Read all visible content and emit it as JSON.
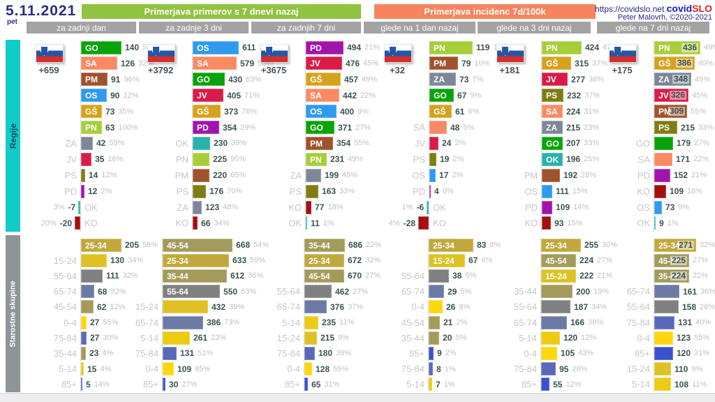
{
  "header": {
    "date": "5.11.2021",
    "weekday": "pet",
    "left_title": "Primerjava primerov s 7 dnevi nazaj",
    "right_title": "Primerjava incidenc 7d/100k",
    "url": "https://covidslo.net",
    "logo_covid": "covid",
    "logo_slo": "SLO",
    "credit": "Peter Malovrh, ©2020-2021",
    "left_tabs": [
      "za zadnji dan",
      "za zadnje 3 dni",
      "za zadnjih 7 dni"
    ],
    "right_tabs": [
      "glede na 1 dan nazaj",
      "glede na 3 dni nazaj",
      "glede na 7 dni nazaj"
    ]
  },
  "sidebar": {
    "regions_label": "Regije",
    "ages_label": "Starostne skupine"
  },
  "colors": {
    "header_green": "#90c33f",
    "header_orange": "#f6845e",
    "tab_gray": "#a3a3a3",
    "regions_sidebar": "#12cbc9",
    "ages_sidebar": "#8f9499",
    "value_text": "#3b5151",
    "percent_text": "#c0c0c0"
  },
  "chart_data": {
    "type": "bar",
    "note": "horizontal bar panels; rows = [label, value, percent, mode] where mode: in=label inside bar, out=label left of axis, chip=value shown inside bar, neg=negative bar to the left",
    "color_map": {
      "GO": "#0aa30a",
      "SA": "#fa8a64",
      "PM": "#a0522d",
      "OS": "#2e9af0",
      "GŠ": "#d6a21d",
      "PN": "#a6ce39",
      "ZA": "#7d8799",
      "JV": "#da1b48",
      "PS": "#7f7d12",
      "PD": "#a213ad",
      "OK": "#27b3ab",
      "KO": "#a50f0f",
      "25-34": "#c2a83c",
      "15-24": "#dfc125",
      "35-44": "#a49a5b",
      "45-54": "#a49a5b",
      "55-64": "#808080",
      "65-74": "#6b7aa5",
      "75-84": "#5a68ba",
      "85+": "#3a52cd",
      "0-4": "#ffd60f",
      "5-14": "#eccb12"
    },
    "sections": [
      {
        "id": "regions",
        "label": "Regije",
        "panels": [
          {
            "tab": "za zadnji dan",
            "delta": "+659",
            "rows": [
              [
                "GO",
                140,
                "55%",
                "in"
              ],
              [
                "SA",
                126,
                "32%",
                "in"
              ],
              [
                "PM",
                91,
                "96%",
                "in"
              ],
              [
                "OS",
                90,
                "12%",
                "in"
              ],
              [
                "GŠ",
                73,
                "35%",
                "in"
              ],
              [
                "PN",
                63,
                "100%",
                "in"
              ],
              [
                "ZA",
                42,
                "59%",
                "out"
              ],
              [
                "JV",
                35,
                "16%",
                "out"
              ],
              [
                "PS",
                14,
                "12%",
                "out"
              ],
              [
                "PD",
                12,
                "2%",
                "out"
              ],
              [
                "OK",
                -7,
                "3%",
                "neg"
              ],
              [
                "KO",
                -20,
                "20%",
                "neg"
              ]
            ]
          },
          {
            "tab": "za zadnje 3 dni",
            "delta": "+3792",
            "rows": [
              [
                "OS",
                611,
                "28%",
                "in"
              ],
              [
                "SA",
                579,
                "55%",
                "in"
              ],
              [
                "GO",
                430,
                "63%",
                "in"
              ],
              [
                "JV",
                405,
                "71%",
                "in"
              ],
              [
                "GŠ",
                373,
                "76%",
                "in"
              ],
              [
                "PD",
                354,
                "29%",
                "in"
              ],
              [
                "OK",
                230,
                "39%",
                "out"
              ],
              [
                "PN",
                225,
                "95%",
                "out"
              ],
              [
                "PM",
                220,
                "65%",
                "out"
              ],
              [
                "PS",
                176,
                "70%",
                "out"
              ],
              [
                "ZA",
                123,
                "48%",
                "out"
              ],
              [
                "KO",
                66,
                "34%",
                "out"
              ]
            ]
          },
          {
            "tab": "za zadnjih 7 dni",
            "delta": "+3675",
            "rows": [
              [
                "PD",
                494,
                "21%",
                "in"
              ],
              [
                "JV",
                476,
                "45%",
                "in"
              ],
              [
                "GŠ",
                457,
                "49%",
                "in"
              ],
              [
                "SA",
                442,
                "22%",
                "in"
              ],
              [
                "OS",
                400,
                "9%",
                "in"
              ],
              [
                "GO",
                371,
                "27%",
                "in"
              ],
              [
                "PM",
                354,
                "55%",
                "in"
              ],
              [
                "PN",
                231,
                "49%",
                "in"
              ],
              [
                "ZA",
                199,
                "45%",
                "out"
              ],
              [
                "PS",
                163,
                "33%",
                "out"
              ],
              [
                "KO",
                77,
                "18%",
                "out"
              ],
              [
                "OK",
                11,
                "1%",
                "out"
              ]
            ]
          },
          {
            "tab": "glede na 1 dan nazaj",
            "delta": "+32",
            "rows": [
              [
                "PN",
                119,
                "10%",
                "in"
              ],
              [
                "PM",
                79,
                "10%",
                "in"
              ],
              [
                "ZA",
                73,
                "7%",
                "in"
              ],
              [
                "GO",
                67,
                "9%",
                "in"
              ],
              [
                "GŠ",
                61,
                "6%",
                "in"
              ],
              [
                "SA",
                48,
                "5%",
                "out"
              ],
              [
                "JV",
                24,
                "2%",
                "out"
              ],
              [
                "PS",
                19,
                "2%",
                "out"
              ],
              [
                "OS",
                17,
                "2%",
                "out"
              ],
              [
                "PD",
                4,
                "0%",
                "out"
              ],
              [
                "OK",
                -6,
                "1%",
                "neg"
              ],
              [
                "KO",
                -28,
                "4%",
                "neg"
              ]
            ]
          },
          {
            "tab": "glede na 3 dni nazaj",
            "delta": "+181",
            "rows": [
              [
                "PN",
                424,
                "47%",
                "in"
              ],
              [
                "GŠ",
                315,
                "37%",
                "in"
              ],
              [
                "JV",
                277,
                "36%",
                "in"
              ],
              [
                "PS",
                232,
                "37%",
                "in"
              ],
              [
                "SA",
                224,
                "31%",
                "in"
              ],
              [
                "ZA",
                215,
                "23%",
                "in"
              ],
              [
                "GO",
                207,
                "33%",
                "in"
              ],
              [
                "OK",
                196,
                "25%",
                "in"
              ],
              [
                "PM",
                192,
                "28%",
                "out"
              ],
              [
                "OS",
                111,
                "15%",
                "out"
              ],
              [
                "PD",
                109,
                "14%",
                "out"
              ],
              [
                "KO",
                93,
                "15%",
                "out"
              ]
            ]
          },
          {
            "tab": "glede na 7 dni nazaj",
            "delta": "+175",
            "rows": [
              [
                "PN",
                436,
                "49%",
                "chip"
              ],
              [
                "GŠ",
                386,
                "49%",
                "chip"
              ],
              [
                "ZA",
                348,
                "45%",
                "chip"
              ],
              [
                "JV",
                326,
                "45%",
                "chip"
              ],
              [
                "PM",
                309,
                "55%",
                "chip"
              ],
              [
                "PS",
                215,
                "33%",
                "in"
              ],
              [
                "GO",
                179,
                "27%",
                "out"
              ],
              [
                "SA",
                171,
                "22%",
                "out"
              ],
              [
                "PD",
                152,
                "21%",
                "out"
              ],
              [
                "KO",
                109,
                "18%",
                "out"
              ],
              [
                "OS",
                73,
                "9%",
                "out"
              ],
              [
                "OK",
                9,
                "1%",
                "out"
              ]
            ]
          }
        ]
      },
      {
        "id": "ages",
        "label": "Starostne skupine",
        "panels": [
          {
            "tab": "za zadnji dan",
            "rows": [
              [
                "25-34",
                205,
                "56%",
                "in"
              ],
              [
                "15-24",
                130,
                "34%",
                "out"
              ],
              [
                "55-64",
                111,
                "32%",
                "out"
              ],
              [
                "65-74",
                68,
                "32%",
                "out"
              ],
              [
                "45-54",
                62,
                "12%",
                "out"
              ],
              [
                "0-4",
                27,
                "55%",
                "out"
              ],
              [
                "75-84",
                27,
                "30%",
                "out"
              ],
              [
                "35-44",
                23,
                "4%",
                "out"
              ],
              [
                "5-14",
                15,
                "4%",
                "out"
              ],
              [
                "85+",
                5,
                "14%",
                "out"
              ]
            ]
          },
          {
            "tab": "za zadnje 3 dni",
            "rows": [
              [
                "45-54",
                668,
                "54%",
                "in"
              ],
              [
                "25-34",
                633,
                "59%",
                "in"
              ],
              [
                "35-44",
                612,
                "36%",
                "in"
              ],
              [
                "55-64",
                550,
                "63%",
                "in"
              ],
              [
                "15-24",
                432,
                "39%",
                "out"
              ],
              [
                "65-74",
                386,
                "73%",
                "out"
              ],
              [
                "5-14",
                261,
                "23%",
                "out"
              ],
              [
                "75-84",
                131,
                "51%",
                "out"
              ],
              [
                "0-4",
                109,
                "85%",
                "out"
              ],
              [
                "85+",
                30,
                "27%",
                "out"
              ]
            ]
          },
          {
            "tab": "za zadnjih 7 dni",
            "rows": [
              [
                "35-44",
                686,
                "22%",
                "in"
              ],
              [
                "25-34",
                672,
                "32%",
                "in"
              ],
              [
                "45-54",
                670,
                "27%",
                "in"
              ],
              [
                "55-64",
                462,
                "27%",
                "out"
              ],
              [
                "65-74",
                376,
                "37%",
                "out"
              ],
              [
                "5-14",
                235,
                "11%",
                "out"
              ],
              [
                "15-24",
                215,
                "9%",
                "out"
              ],
              [
                "75-84",
                180,
                "39%",
                "out"
              ],
              [
                "0-4",
                128,
                "55%",
                "out"
              ],
              [
                "85+",
                65,
                "31%",
                "out"
              ]
            ]
          },
          {
            "tab": "glede na 1 dan nazaj",
            "rows": [
              [
                "25-34",
                83,
                "8%",
                "in"
              ],
              [
                "15-24",
                67,
                "6%",
                "in"
              ],
              [
                "55-64",
                38,
                "5%",
                "out"
              ],
              [
                "65-74",
                29,
                "5%",
                "out"
              ],
              [
                "0-4",
                26,
                "8%",
                "out"
              ],
              [
                "45-54",
                21,
                "2%",
                "out"
              ],
              [
                "35-44",
                20,
                "5%",
                "out"
              ],
              [
                "85+",
                9,
                "2%",
                "out"
              ],
              [
                "75-84",
                8,
                "1%",
                "out"
              ],
              [
                "5-14",
                7,
                "1%",
                "out"
              ]
            ]
          },
          {
            "tab": "glede na 3 dni nazaj",
            "rows": [
              [
                "25-34",
                255,
                "30%",
                "in"
              ],
              [
                "45-54",
                224,
                "27%",
                "in"
              ],
              [
                "15-24",
                222,
                "21%",
                "in"
              ],
              [
                "35-44",
                200,
                "19%",
                "out"
              ],
              [
                "55-64",
                187,
                "34%",
                "out"
              ],
              [
                "65-74",
                166,
                "38%",
                "out"
              ],
              [
                "5-14",
                120,
                "12%",
                "out"
              ],
              [
                "0-4",
                105,
                "43%",
                "out"
              ],
              [
                "75-84",
                95,
                "26%",
                "out"
              ],
              [
                "85+",
                55,
                "12%",
                "out"
              ]
            ]
          },
          {
            "tab": "glede na 7 dni nazaj",
            "rows": [
              [
                "25-34",
                271,
                "32%",
                "chip"
              ],
              [
                "45-54",
                225,
                "27%",
                "chip"
              ],
              [
                "35-44",
                224,
                "22%",
                "chip"
              ],
              [
                "65-74",
                161,
                "36%",
                "out"
              ],
              [
                "55-64",
                158,
                "28%",
                "out"
              ],
              [
                "75-84",
                131,
                "40%",
                "out"
              ],
              [
                "0-4",
                123,
                "55%",
                "out"
              ],
              [
                "85+",
                120,
                "31%",
                "out"
              ],
              [
                "15-24",
                110,
                "9%",
                "out"
              ],
              [
                "5-14",
                108,
                "11%",
                "out"
              ]
            ]
          }
        ]
      }
    ]
  }
}
